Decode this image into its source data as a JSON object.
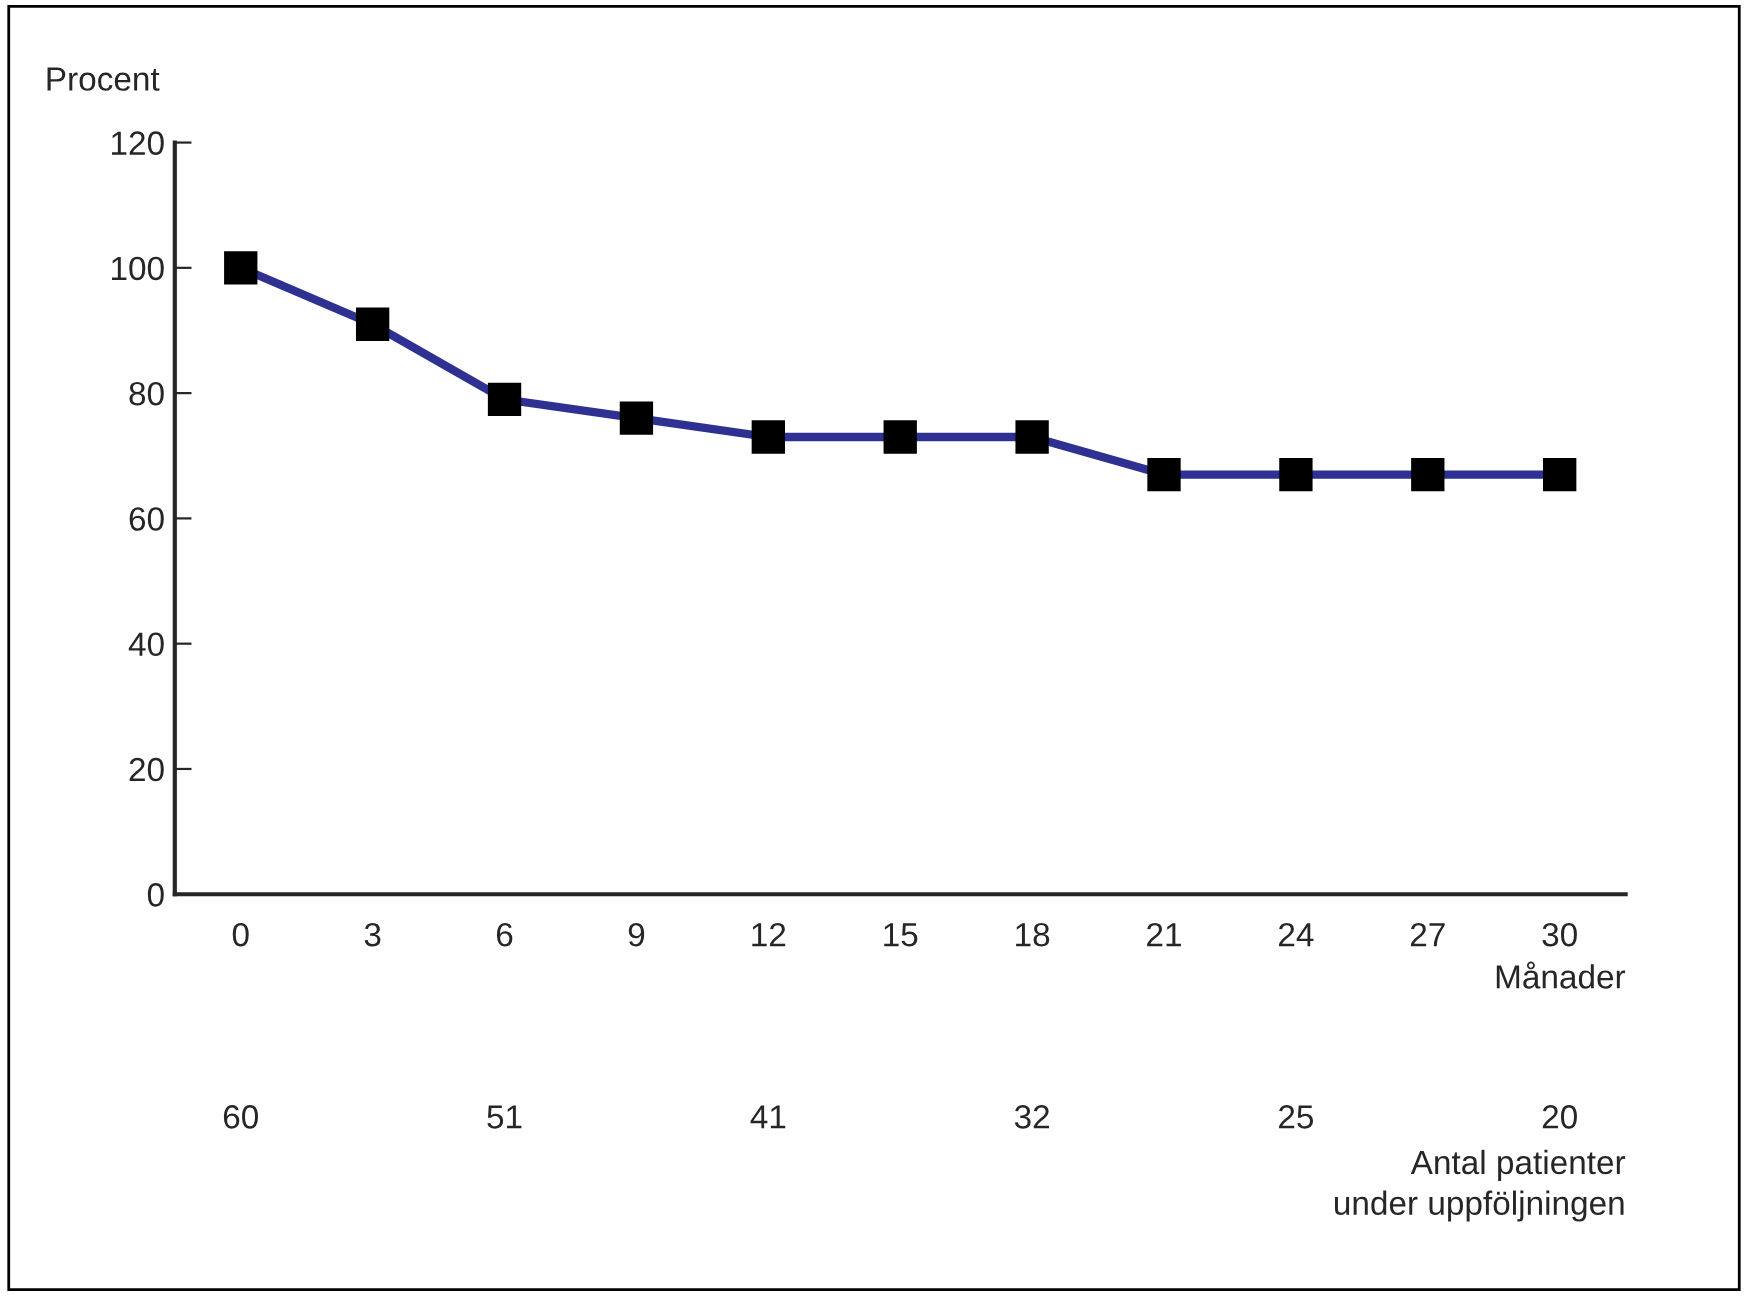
{
  "chart_data": {
    "type": "line",
    "ylabel": "Procent",
    "xlabel": "Månader",
    "categories": [
      "0",
      "3",
      "6",
      "9",
      "12",
      "15",
      "18",
      "21",
      "24",
      "27",
      "30"
    ],
    "series": [
      {
        "color": "#2e3192",
        "values": [
          100,
          91,
          79,
          76,
          73,
          73,
          73,
          67,
          67,
          67,
          67
        ]
      }
    ],
    "marker": "square",
    "ylim": [
      0,
      120
    ],
    "yticks": [
      0,
      20,
      40,
      60,
      80,
      100,
      120
    ],
    "grid": false,
    "legend": false,
    "annotations": [
      "60",
      "51",
      "41",
      "32",
      "25",
      "20",
      "Antal patienter\nunder uppföljningen"
    ]
  }
}
